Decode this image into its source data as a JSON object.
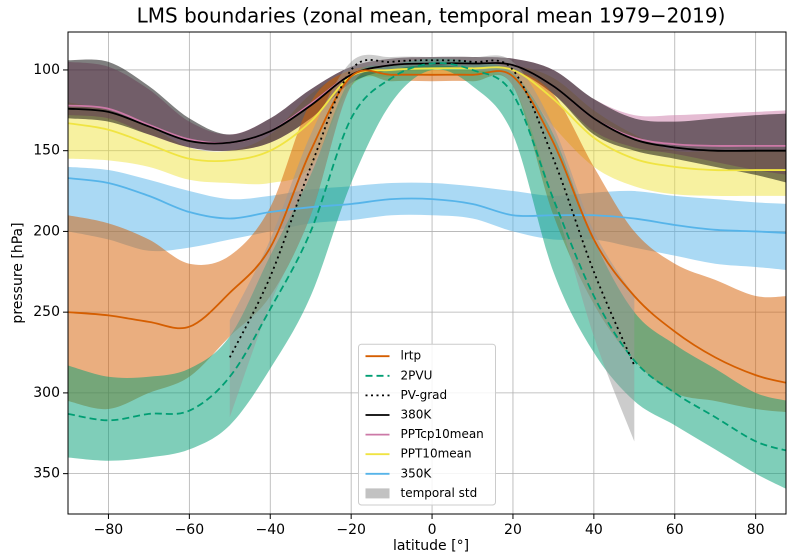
{
  "chart_data": {
    "type": "line",
    "title": "LMS boundaries (zonal mean, temporal mean 1979−2019)",
    "x_label": "latitude [°]",
    "y_label": "pressure [hPa]",
    "x": [
      -90,
      -80,
      -70,
      -60,
      -50,
      -40,
      -30,
      -20,
      -10,
      0,
      10,
      20,
      30,
      40,
      50,
      60,
      70,
      80,
      88
    ],
    "xlim": [
      -90,
      87.5
    ],
    "ylim": [
      375,
      76.5
    ],
    "y_inverted": true,
    "xticks": [
      {
        "value": -80,
        "label": "−80"
      },
      {
        "value": -60,
        "label": "−60"
      },
      {
        "value": -40,
        "label": "−40"
      },
      {
        "value": -20,
        "label": "−20"
      },
      0,
      20,
      40,
      60,
      80
    ],
    "yticks": [
      100,
      150,
      200,
      250,
      300,
      350
    ],
    "grid": true,
    "legend": "lower center",
    "series": [
      {
        "name": "lrtp",
        "color": "#d55e00",
        "style": "solid",
        "values": [
          250,
          252,
          256,
          259,
          238,
          210,
          150,
          104,
          103,
          103,
          103,
          104,
          145,
          205,
          240,
          262,
          278,
          289,
          294
        ],
        "lower": [
          190,
          195,
          205,
          220,
          215,
          185,
          120,
          100,
          100,
          100,
          100,
          100,
          115,
          160,
          200,
          220,
          230,
          240,
          240
        ],
        "upper": [
          305,
          310,
          300,
          290,
          265,
          240,
          190,
          110,
          107,
          107,
          107,
          110,
          190,
          245,
          280,
          300,
          305,
          310,
          312
        ]
      },
      {
        "name": "2PVU",
        "color": "#009e73",
        "style": "dashed",
        "values": [
          313,
          317,
          313,
          311,
          290,
          248,
          200,
          130,
          105,
          96,
          100,
          115,
          180,
          240,
          280,
          300,
          315,
          330,
          336
        ],
        "lower": [
          283,
          290,
          290,
          285,
          265,
          215,
          165,
          105,
          97,
          93,
          95,
          102,
          140,
          205,
          250,
          270,
          285,
          300,
          305
        ],
        "upper": [
          340,
          342,
          340,
          335,
          320,
          285,
          240,
          170,
          120,
          100,
          110,
          140,
          225,
          275,
          305,
          320,
          335,
          350,
          360
        ]
      },
      {
        "name": "PV-grad",
        "color": "#000000",
        "style": "dotted",
        "values": [
          null,
          null,
          null,
          null,
          278,
          228,
          160,
          100,
          95,
          94,
          95,
          100,
          155,
          225,
          283,
          null,
          null,
          null,
          null
        ]
      },
      {
        "name": "380K",
        "color": "#000000",
        "style": "solid",
        "values": [
          124,
          126,
          135,
          144,
          145,
          138,
          122,
          103,
          97,
          96,
          96,
          97,
          110,
          130,
          143,
          148,
          150,
          150,
          150
        ],
        "lower": [
          94,
          95,
          110,
          130,
          140,
          130,
          112,
          98,
          93,
          92,
          92,
          93,
          100,
          118,
          130,
          132,
          130,
          128,
          127
        ],
        "upper": [
          130,
          132,
          140,
          148,
          150,
          145,
          130,
          108,
          100,
          99,
          99,
          100,
          115,
          140,
          150,
          155,
          160,
          165,
          170
        ]
      },
      {
        "name": "PPTcp10mean",
        "color": "#cc79a7",
        "style": "solid",
        "values": [
          122,
          124,
          134,
          143,
          145,
          138,
          121,
          103,
          97,
          96,
          96,
          97,
          110,
          130,
          142,
          146,
          147,
          147,
          147
        ],
        "lower": [
          95,
          98,
          112,
          132,
          140,
          130,
          112,
          98,
          93,
          92,
          92,
          93,
          100,
          118,
          128,
          128,
          127,
          126,
          125
        ],
        "upper": [
          128,
          130,
          140,
          148,
          150,
          145,
          130,
          108,
          100,
          99,
          99,
          100,
          115,
          138,
          148,
          152,
          157,
          162,
          165
        ]
      },
      {
        "name": "PPT10mean",
        "color": "#f0e442",
        "style": "solid",
        "values": [
          133,
          137,
          146,
          155,
          156,
          150,
          132,
          104,
          100,
          99,
          99,
          100,
          118,
          142,
          155,
          160,
          162,
          162,
          162
        ],
        "lower": [
          120,
          125,
          135,
          148,
          150,
          140,
          115,
          100,
          97,
          96,
          96,
          97,
          105,
          125,
          140,
          150,
          150,
          150,
          150
        ],
        "upper": [
          155,
          156,
          160,
          168,
          170,
          170,
          160,
          110,
          104,
          103,
          103,
          104,
          135,
          160,
          172,
          177,
          178,
          178,
          178
        ]
      },
      {
        "name": "350K",
        "color": "#56b4e9",
        "style": "solid",
        "values": [
          167,
          170,
          178,
          188,
          192,
          188,
          185,
          183,
          180,
          180,
          183,
          190,
          190,
          190,
          192,
          196,
          199,
          200,
          201
        ],
        "lower": [
          160,
          162,
          168,
          175,
          180,
          178,
          174,
          172,
          170,
          170,
          172,
          175,
          178,
          176,
          175,
          178,
          180,
          182,
          183
        ],
        "upper": [
          200,
          205,
          212,
          210,
          205,
          200,
          195,
          193,
          190,
          190,
          192,
          200,
          205,
          205,
          210,
          215,
          220,
          222,
          224
        ]
      },
      {
        "name": "temporal std",
        "color": "#999999",
        "style": "band",
        "lower": [
          null,
          null,
          null,
          null,
          255,
          205,
          140,
          95,
          92,
          92,
          92,
          95,
          135,
          200,
          240,
          null,
          null,
          null,
          null
        ],
        "upper": [
          null,
          null,
          null,
          null,
          315,
          245,
          190,
          110,
          100,
          97,
          100,
          110,
          180,
          265,
          330,
          null,
          null,
          null,
          null
        ]
      }
    ]
  }
}
